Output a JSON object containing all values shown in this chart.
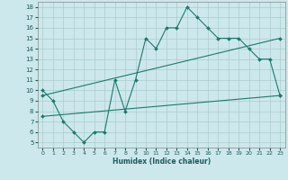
{
  "xlabel": "Humidex (Indice chaleur)",
  "bg_color": "#cce8ec",
  "grid_color": "#aacccc",
  "line_color": "#1a7a6e",
  "xlim": [
    -0.5,
    23.5
  ],
  "ylim": [
    4.5,
    18.5
  ],
  "xtick_labels": [
    "0",
    "1",
    "2",
    "3",
    "4",
    "5",
    "6",
    "7",
    "8",
    "9",
    "10",
    "11",
    "12",
    "13",
    "14",
    "15",
    "16",
    "17",
    "18",
    "19",
    "20",
    "21",
    "22",
    "23"
  ],
  "xtick_vals": [
    0,
    1,
    2,
    3,
    4,
    5,
    6,
    7,
    8,
    9,
    10,
    11,
    12,
    13,
    14,
    15,
    16,
    17,
    18,
    19,
    20,
    21,
    22,
    23
  ],
  "ytick_vals": [
    5,
    6,
    7,
    8,
    9,
    10,
    11,
    12,
    13,
    14,
    15,
    16,
    17,
    18
  ],
  "line1_x": [
    0,
    1,
    2,
    3,
    4,
    5,
    6,
    7,
    8,
    9,
    10,
    11,
    12,
    13,
    14,
    15,
    16,
    17,
    18,
    19,
    20,
    21,
    22,
    23
  ],
  "line1_y": [
    10,
    9,
    7,
    6,
    5,
    6,
    6,
    11,
    8,
    11,
    15,
    14,
    16,
    16,
    18,
    17,
    16,
    15,
    15,
    15,
    14,
    13,
    13,
    9.5
  ],
  "line2_x": [
    0,
    23
  ],
  "line2_y": [
    7.5,
    9.5
  ],
  "line3_x": [
    0,
    23
  ],
  "line3_y": [
    9.5,
    15
  ]
}
